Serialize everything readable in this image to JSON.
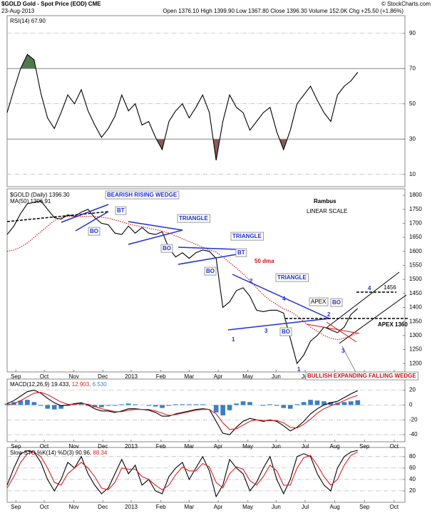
{
  "header": {
    "title": "$GOLD Gold - Spot Price (EOD) CME",
    "date": "23-Aug-2013",
    "source": "© StockCharts.com",
    "quote": "Open 1376.10 High 1399.90 Low 1367.80 Close 1396.30 Volume 152.0K Chg +25.50 (+1.86%)"
  },
  "annotations": [
    "BEARISH RISING WEDGE",
    "BT",
    "BO",
    "TRIANGLE",
    "BO",
    "TRIANGLE",
    "BT",
    "BO",
    "50 dma",
    "TRIANGLE",
    "1",
    "2",
    "3",
    "4",
    "BO",
    "APEX",
    "BO",
    "2",
    "3",
    "1",
    "4",
    "1456",
    "APEX 1360",
    "Rambus",
    "LINEAR SCALE",
    "BULLISH EXPANDING FALLING WEDGE"
  ],
  "chart_data": [
    {
      "type": "line",
      "legend_layout": "inline",
      "grid": true,
      "x": [
        0,
        1,
        2,
        3,
        4,
        5,
        6,
        7,
        8,
        9,
        10,
        11,
        12,
        13,
        14,
        15,
        16,
        17,
        18,
        19,
        20,
        21,
        22,
        23,
        24,
        25,
        26,
        27,
        28,
        29,
        30,
        31,
        32,
        33,
        34,
        35,
        36,
        37,
        38,
        39,
        40,
        41,
        42,
        43,
        44,
        45,
        46,
        47,
        48,
        49,
        50,
        51,
        52
      ],
      "xlim": [
        0,
        59
      ],
      "ylim": [
        3,
        100
      ],
      "yticks": [
        10,
        30,
        50,
        70,
        90
      ],
      "overbought": 70,
      "oversold": 30,
      "overbought_color": "#4e7a4e",
      "oversold_color": "#8c5a52",
      "series": [
        {
          "name": "RSI(14) 67.90",
          "color": "#000000",
          "style": "line",
          "values": [
            45,
            58,
            70,
            78,
            75,
            56,
            42,
            36,
            45,
            55,
            50,
            58,
            46,
            38,
            31,
            36,
            43,
            55,
            46,
            50,
            38,
            40,
            31,
            24,
            40,
            46,
            50,
            42,
            48,
            55,
            45,
            18,
            40,
            55,
            48,
            45,
            35,
            40,
            45,
            48,
            34,
            24,
            35,
            50,
            55,
            60,
            52,
            45,
            40,
            55,
            60,
            63,
            67.9
          ]
        }
      ]
    },
    {
      "type": "line",
      "legend_layout": "rows",
      "grid": false,
      "x": [
        0,
        1,
        2,
        3,
        4,
        5,
        6,
        7,
        8,
        9,
        10,
        11,
        12,
        13,
        14,
        15,
        16,
        17,
        18,
        19,
        20,
        21,
        22,
        23,
        24,
        25,
        26,
        27,
        28,
        29,
        30,
        31,
        32,
        33,
        34,
        35,
        36,
        37,
        38,
        39,
        40,
        41,
        42,
        43,
        44,
        45,
        46,
        47,
        48,
        49,
        50,
        51,
        52
      ],
      "xlim": [
        0,
        59
      ],
      "ylim": [
        1170,
        1823
      ],
      "yticks": [
        1200,
        1250,
        1300,
        1350,
        1400,
        1450,
        1500,
        1550,
        1600,
        1650,
        1700,
        1750,
        1800
      ],
      "xticks": [
        {
          "value": 1.3,
          "label": "Sep"
        },
        {
          "value": 5.5,
          "label": "Oct"
        },
        {
          "value": 9.9,
          "label": "Nov"
        },
        {
          "value": 14.2,
          "label": "Dec"
        },
        {
          "value": 18.4,
          "label": "2013"
        },
        {
          "value": 22.8,
          "label": "Feb"
        },
        {
          "value": 27,
          "label": "Mar"
        },
        {
          "value": 31.3,
          "label": "Apr"
        },
        {
          "value": 35.7,
          "label": "May"
        },
        {
          "value": 39.9,
          "label": "Jun"
        },
        {
          "value": 44.2,
          "label": "Jul"
        },
        {
          "value": 48.6,
          "label": "Aug"
        },
        {
          "value": 53,
          "label": "Sep"
        },
        {
          "value": 57.4,
          "label": "Oct"
        }
      ],
      "series": [
        {
          "name": "$GOLD (Daily) 1396.30",
          "color": "#000000",
          "style": "line",
          "values": [
            1660,
            1690,
            1735,
            1770,
            1775,
            1780,
            1750,
            1720,
            1715,
            1730,
            1725,
            1740,
            1750,
            1720,
            1700,
            1695,
            1665,
            1660,
            1690,
            1665,
            1685,
            1665,
            1660,
            1670,
            1610,
            1580,
            1595,
            1575,
            1595,
            1605,
            1600,
            1575,
            1400,
            1420,
            1460,
            1470,
            1440,
            1390,
            1385,
            1390,
            1390,
            1380,
            1290,
            1200,
            1230,
            1280,
            1300,
            1330,
            1320,
            1310,
            1330,
            1375,
            1396.3
          ]
        },
        {
          "name": "MA(50) 1306.91",
          "color": "#e02020",
          "style": "dotted",
          "values": [
            1600,
            1605,
            1615,
            1630,
            1650,
            1670,
            1690,
            1710,
            1720,
            1725,
            1725,
            1725,
            1725,
            1725,
            1722,
            1718,
            1712,
            1705,
            1698,
            1692,
            1688,
            1682,
            1678,
            1672,
            1665,
            1655,
            1645,
            1635,
            1625,
            1615,
            1605,
            1598,
            1580,
            1560,
            1540,
            1520,
            1495,
            1470,
            1445,
            1425,
            1410,
            1395,
            1385,
            1370,
            1350,
            1330,
            1315,
            1300,
            1290,
            1285,
            1290,
            1298,
            1306.9
          ]
        }
      ]
    },
    {
      "type": "line",
      "legend_layout": "inline",
      "grid": true,
      "x": [
        0,
        1,
        2,
        3,
        4,
        5,
        6,
        7,
        8,
        9,
        10,
        11,
        12,
        13,
        14,
        15,
        16,
        17,
        18,
        19,
        20,
        21,
        22,
        23,
        24,
        25,
        26,
        27,
        28,
        29,
        30,
        31,
        32,
        33,
        34,
        35,
        36,
        37,
        38,
        39,
        40,
        41,
        42,
        43,
        44,
        45,
        46,
        47,
        48,
        49,
        50,
        51,
        52
      ],
      "xlim": [
        0,
        59
      ],
      "ylim": [
        -49.5,
        35
      ],
      "yticks": [
        -40,
        -20,
        0,
        20
      ],
      "series": [
        {
          "name": "MACD(12,26,9) 19.433,",
          "color": "#000000",
          "style": "line",
          "values": [
            2,
            6,
            12,
            18,
            20,
            16,
            9,
            3,
            -1,
            0,
            2,
            3,
            0,
            -5,
            -8,
            -8,
            -10,
            -8,
            -5,
            -5,
            -6,
            -7,
            -10,
            -15,
            -15,
            -12,
            -10,
            -8,
            -6,
            -5,
            -6,
            -22,
            -38,
            -40,
            -30,
            -22,
            -18,
            -20,
            -22,
            -20,
            -22,
            -28,
            -35,
            -30,
            -22,
            -12,
            -5,
            0,
            3,
            5,
            10,
            15,
            19.4
          ]
        },
        {
          "name": "12.903,",
          "color": "#e02020",
          "style": "line",
          "values": [
            0,
            2,
            6,
            11,
            16,
            17,
            14,
            9,
            4,
            1,
            1,
            2,
            1,
            -2,
            -5,
            -7,
            -9,
            -9,
            -7,
            -6,
            -6,
            -6,
            -8,
            -11,
            -14,
            -13,
            -11,
            -9,
            -7,
            -6,
            -6,
            -12,
            -24,
            -33,
            -32,
            -27,
            -22,
            -20,
            -21,
            -21,
            -21,
            -24,
            -30,
            -31,
            -26,
            -19,
            -11,
            -5,
            -1,
            2,
            6,
            10,
            12.9
          ]
        },
        {
          "name": "6.530",
          "color": "#3b7fc0",
          "style": "bar",
          "values": [
            2,
            4,
            6,
            7,
            4,
            -1,
            -5,
            -6,
            -5,
            -1,
            1,
            1,
            -1,
            -3,
            -3,
            -1,
            -1,
            1,
            2,
            1,
            0,
            -1,
            -2,
            -4,
            -1,
            1,
            1,
            1,
            1,
            1,
            0,
            -10,
            -14,
            -7,
            2,
            5,
            4,
            0,
            -1,
            1,
            -1,
            -4,
            -5,
            1,
            4,
            7,
            6,
            5,
            4,
            3,
            4,
            5,
            6.5
          ]
        }
      ]
    },
    {
      "type": "line",
      "legend_layout": "inline",
      "grid": true,
      "x": [
        0,
        1,
        2,
        3,
        4,
        5,
        6,
        7,
        8,
        9,
        10,
        11,
        12,
        13,
        14,
        15,
        16,
        17,
        18,
        19,
        20,
        21,
        22,
        23,
        24,
        25,
        26,
        27,
        28,
        29,
        30,
        31,
        32,
        33,
        34,
        35,
        36,
        37,
        38,
        39,
        40,
        41,
        42,
        43,
        44,
        45,
        46,
        47,
        48,
        49,
        50,
        51,
        52
      ],
      "xlim": [
        0,
        59
      ],
      "ylim": [
        0,
        96
      ],
      "yticks": [
        20,
        40,
        60,
        80
      ],
      "series": [
        {
          "name": "Slow STO %K(14) %D(3) 90.96,",
          "color": "#000000",
          "style": "line",
          "values": [
            30,
            60,
            85,
            90,
            88,
            70,
            40,
            20,
            40,
            70,
            60,
            80,
            50,
            30,
            15,
            25,
            50,
            75,
            50,
            65,
            30,
            40,
            20,
            15,
            45,
            60,
            70,
            40,
            60,
            80,
            55,
            10,
            30,
            75,
            60,
            50,
            20,
            35,
            60,
            80,
            40,
            15,
            40,
            80,
            85,
            80,
            50,
            30,
            20,
            60,
            80,
            88,
            91
          ]
        },
        {
          "name": "88.34",
          "color": "#e02020",
          "style": "line",
          "values": [
            25,
            45,
            70,
            85,
            88,
            80,
            60,
            35,
            30,
            50,
            60,
            70,
            60,
            45,
            25,
            22,
            35,
            60,
            58,
            58,
            45,
            40,
            30,
            22,
            30,
            48,
            62,
            55,
            55,
            68,
            62,
            35,
            25,
            50,
            62,
            58,
            38,
            30,
            45,
            65,
            55,
            30,
            30,
            60,
            78,
            82,
            65,
            45,
            30,
            40,
            65,
            82,
            88.3
          ]
        }
      ]
    }
  ]
}
